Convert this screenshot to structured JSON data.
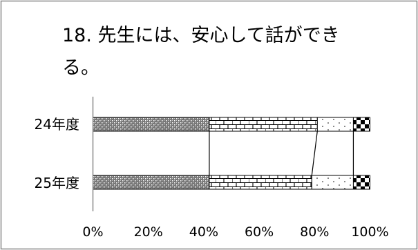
{
  "chart_data": {
    "type": "bar",
    "orientation": "horizontal",
    "stacked": "percent",
    "title_lines": [
      "18. 先生には、安心して話ができ",
      "る。"
    ],
    "categories": [
      "24年度",
      "25年度"
    ],
    "series": [
      {
        "pattern": "stipple",
        "values": [
          42,
          42
        ]
      },
      {
        "pattern": "brick",
        "values": [
          39,
          37
        ]
      },
      {
        "pattern": "dots",
        "values": [
          13,
          15
        ]
      },
      {
        "pattern": "checker",
        "values": [
          6,
          6
        ]
      }
    ],
    "x_ticks": [
      "0%",
      "20%",
      "40%",
      "60%",
      "80%",
      "100%"
    ],
    "xlim": [
      0,
      100
    ],
    "series_lines": true,
    "grid": false,
    "legend": "none"
  }
}
